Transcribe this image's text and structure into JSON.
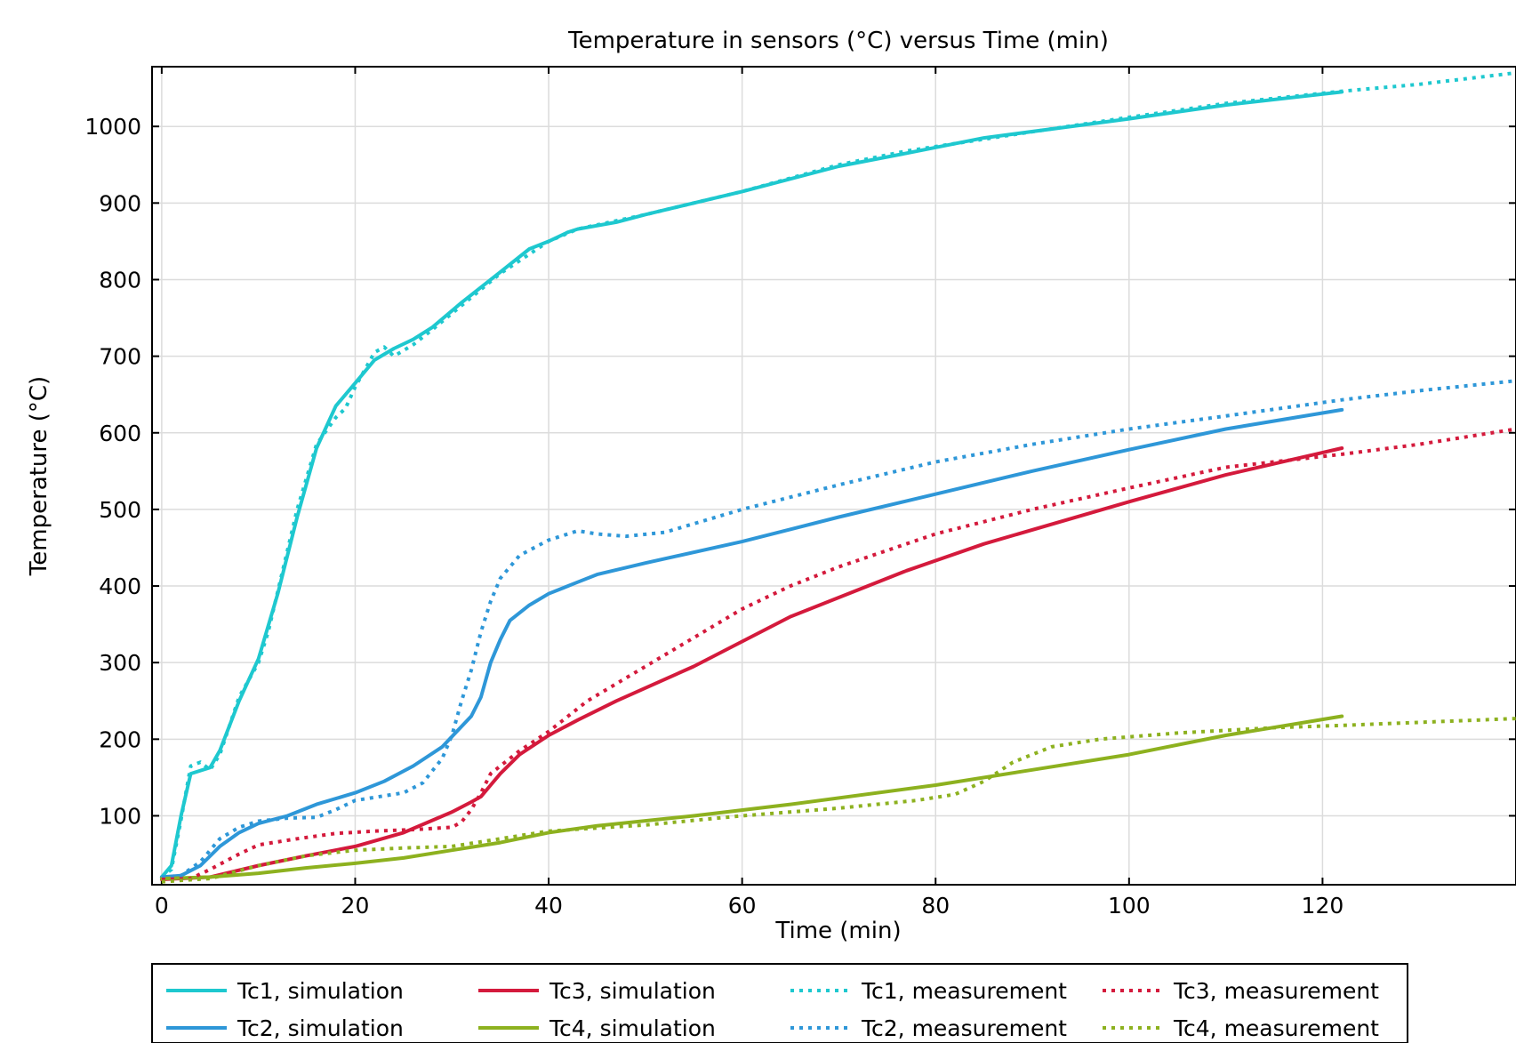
{
  "chart_data": {
    "type": "line",
    "title": "Temperature in sensors (°C) versus Time (min)",
    "xlabel": "Time (min)",
    "ylabel": "Temperature (°C)",
    "xlim": [
      -1,
      140
    ],
    "ylim": [
      10,
      1078
    ],
    "xticks": [
      0,
      20,
      40,
      60,
      80,
      100,
      120
    ],
    "yticks": [
      100,
      200,
      300,
      400,
      500,
      600,
      700,
      800,
      900,
      1000
    ],
    "grid": true,
    "legend_position": "bottom",
    "series": [
      {
        "name": "Tc1, simulation",
        "color": "#1ec8cf",
        "style": "solid",
        "points": [
          [
            0,
            20
          ],
          [
            1,
            35
          ],
          [
            2,
            100
          ],
          [
            3,
            155
          ],
          [
            5,
            163
          ],
          [
            6,
            185
          ],
          [
            8,
            250
          ],
          [
            10,
            305
          ],
          [
            12,
            390
          ],
          [
            14,
            490
          ],
          [
            16,
            580
          ],
          [
            18,
            635
          ],
          [
            20,
            665
          ],
          [
            22,
            695
          ],
          [
            24,
            710
          ],
          [
            26,
            722
          ],
          [
            28,
            738
          ],
          [
            31,
            770
          ],
          [
            35,
            810
          ],
          [
            38,
            840
          ],
          [
            40,
            850
          ],
          [
            42,
            862
          ],
          [
            43,
            866
          ],
          [
            47,
            875
          ],
          [
            50,
            885
          ],
          [
            60,
            915
          ],
          [
            70,
            948
          ],
          [
            77,
            965
          ],
          [
            85,
            985
          ],
          [
            100,
            1010
          ],
          [
            110,
            1028
          ],
          [
            122,
            1045
          ]
        ]
      },
      {
        "name": "Tc2, simulation",
        "color": "#2e97d8",
        "style": "solid",
        "points": [
          [
            0,
            20
          ],
          [
            2,
            22
          ],
          [
            4,
            35
          ],
          [
            6,
            60
          ],
          [
            8,
            78
          ],
          [
            10,
            90
          ],
          [
            13,
            100
          ],
          [
            16,
            115
          ],
          [
            20,
            130
          ],
          [
            23,
            145
          ],
          [
            26,
            165
          ],
          [
            29,
            190
          ],
          [
            32,
            230
          ],
          [
            33,
            255
          ],
          [
            34,
            300
          ],
          [
            35,
            330
          ],
          [
            36,
            355
          ],
          [
            38,
            375
          ],
          [
            40,
            390
          ],
          [
            43,
            405
          ],
          [
            45,
            415
          ],
          [
            50,
            430
          ],
          [
            60,
            458
          ],
          [
            70,
            490
          ],
          [
            80,
            520
          ],
          [
            90,
            550
          ],
          [
            100,
            578
          ],
          [
            110,
            605
          ],
          [
            122,
            630
          ]
        ]
      },
      {
        "name": "Tc3, simulation",
        "color": "#d41a3c",
        "style": "solid",
        "points": [
          [
            0,
            17
          ],
          [
            5,
            20
          ],
          [
            10,
            35
          ],
          [
            15,
            48
          ],
          [
            20,
            60
          ],
          [
            25,
            78
          ],
          [
            30,
            105
          ],
          [
            32,
            118
          ],
          [
            33,
            125
          ],
          [
            34,
            140
          ],
          [
            35,
            155
          ],
          [
            37,
            180
          ],
          [
            40,
            205
          ],
          [
            43,
            225
          ],
          [
            47,
            250
          ],
          [
            55,
            295
          ],
          [
            65,
            360
          ],
          [
            77,
            420
          ],
          [
            85,
            455
          ],
          [
            100,
            510
          ],
          [
            110,
            545
          ],
          [
            122,
            580
          ]
        ]
      },
      {
        "name": "Tc4, simulation",
        "color": "#8db11f",
        "style": "solid",
        "points": [
          [
            0,
            18
          ],
          [
            5,
            20
          ],
          [
            10,
            25
          ],
          [
            15,
            32
          ],
          [
            20,
            38
          ],
          [
            25,
            45
          ],
          [
            30,
            55
          ],
          [
            35,
            65
          ],
          [
            40,
            78
          ],
          [
            45,
            87
          ],
          [
            55,
            100
          ],
          [
            65,
            115
          ],
          [
            80,
            140
          ],
          [
            90,
            160
          ],
          [
            100,
            180
          ],
          [
            110,
            205
          ],
          [
            122,
            230
          ]
        ]
      },
      {
        "name": "Tc1, measurement",
        "color": "#1ec8cf",
        "style": "dotted",
        "points": [
          [
            0,
            20
          ],
          [
            1,
            30
          ],
          [
            2,
            95
          ],
          [
            3,
            165
          ],
          [
            4,
            170
          ],
          [
            5,
            160
          ],
          [
            6,
            180
          ],
          [
            8,
            255
          ],
          [
            10,
            300
          ],
          [
            11,
            340
          ],
          [
            14,
            500
          ],
          [
            16,
            585
          ],
          [
            18,
            620
          ],
          [
            19,
            632
          ],
          [
            20,
            660
          ],
          [
            22,
            705
          ],
          [
            23,
            712
          ],
          [
            24,
            700
          ],
          [
            26,
            715
          ],
          [
            28,
            735
          ],
          [
            35,
            808
          ],
          [
            40,
            850
          ],
          [
            43,
            866
          ],
          [
            50,
            885
          ],
          [
            60,
            915
          ],
          [
            70,
            950
          ],
          [
            77,
            968
          ],
          [
            90,
            993
          ],
          [
            100,
            1012
          ],
          [
            110,
            1030
          ],
          [
            122,
            1046
          ],
          [
            130,
            1055
          ],
          [
            140,
            1070
          ]
        ]
      },
      {
        "name": "Tc2, measurement",
        "color": "#2e97d8",
        "style": "dotted",
        "points": [
          [
            0,
            20
          ],
          [
            2,
            22
          ],
          [
            4,
            40
          ],
          [
            6,
            70
          ],
          [
            8,
            85
          ],
          [
            10,
            93
          ],
          [
            13,
            97
          ],
          [
            16,
            98
          ],
          [
            18,
            108
          ],
          [
            20,
            120
          ],
          [
            25,
            130
          ],
          [
            27,
            143
          ],
          [
            29,
            175
          ],
          [
            30,
            205
          ],
          [
            31,
            250
          ],
          [
            32,
            290
          ],
          [
            33,
            340
          ],
          [
            34,
            380
          ],
          [
            35,
            410
          ],
          [
            37,
            440
          ],
          [
            40,
            460
          ],
          [
            43,
            472
          ],
          [
            45,
            468
          ],
          [
            48,
            465
          ],
          [
            52,
            470
          ],
          [
            60,
            500
          ],
          [
            70,
            532
          ],
          [
            80,
            562
          ],
          [
            90,
            585
          ],
          [
            100,
            605
          ],
          [
            110,
            622
          ],
          [
            122,
            643
          ],
          [
            130,
            655
          ],
          [
            140,
            668
          ]
        ]
      },
      {
        "name": "Tc3, measurement",
        "color": "#d41a3c",
        "style": "dotted",
        "points": [
          [
            0,
            17
          ],
          [
            3,
            18
          ],
          [
            5,
            30
          ],
          [
            8,
            50
          ],
          [
            10,
            62
          ],
          [
            14,
            70
          ],
          [
            18,
            77
          ],
          [
            22,
            80
          ],
          [
            26,
            82
          ],
          [
            30,
            85
          ],
          [
            31,
            92
          ],
          [
            32,
            108
          ],
          [
            33,
            130
          ],
          [
            34,
            155
          ],
          [
            35,
            165
          ],
          [
            37,
            185
          ],
          [
            40,
            210
          ],
          [
            44,
            250
          ],
          [
            50,
            295
          ],
          [
            60,
            370
          ],
          [
            65,
            400
          ],
          [
            70,
            425
          ],
          [
            80,
            468
          ],
          [
            90,
            500
          ],
          [
            100,
            528
          ],
          [
            110,
            555
          ],
          [
            122,
            572
          ],
          [
            130,
            585
          ],
          [
            140,
            605
          ]
        ]
      },
      {
        "name": "Tc4, measurement",
        "color": "#8db11f",
        "style": "dotted",
        "points": [
          [
            0,
            14
          ],
          [
            5,
            18
          ],
          [
            10,
            35
          ],
          [
            15,
            48
          ],
          [
            20,
            55
          ],
          [
            25,
            58
          ],
          [
            30,
            60
          ],
          [
            35,
            70
          ],
          [
            40,
            80
          ],
          [
            50,
            88
          ],
          [
            60,
            100
          ],
          [
            70,
            110
          ],
          [
            78,
            120
          ],
          [
            82,
            128
          ],
          [
            85,
            145
          ],
          [
            88,
            170
          ],
          [
            92,
            190
          ],
          [
            97,
            200
          ],
          [
            105,
            208
          ],
          [
            115,
            215
          ],
          [
            122,
            218
          ],
          [
            130,
            222
          ],
          [
            140,
            227
          ]
        ]
      }
    ]
  }
}
